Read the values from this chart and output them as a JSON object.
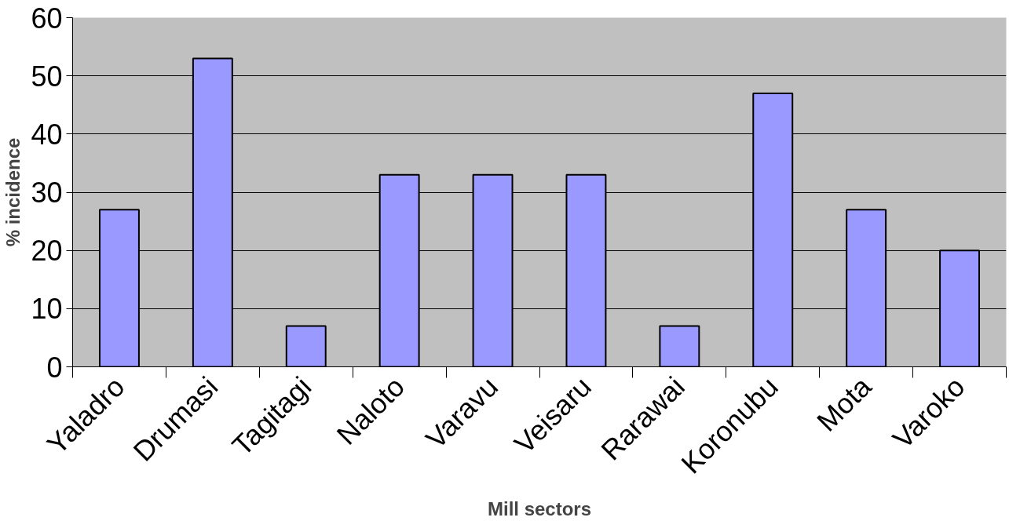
{
  "chart_data": {
    "type": "bar",
    "xlabel": "Mill sectors",
    "ylabel": "% incidence",
    "categories": [
      "Yaladro",
      "Drumasi",
      "Tagitagi",
      "Naloto",
      "Varavu",
      "Veisaru",
      "Rarawai",
      "Koronubu",
      "Mota",
      "Varoko"
    ],
    "values": [
      27,
      53,
      7,
      33,
      33,
      33,
      7,
      47,
      27,
      20
    ],
    "color": "#9999ff",
    "ylim": [
      0,
      60
    ],
    "yticks": [
      0,
      10,
      20,
      30,
      40,
      50,
      60
    ],
    "grid": "y"
  }
}
